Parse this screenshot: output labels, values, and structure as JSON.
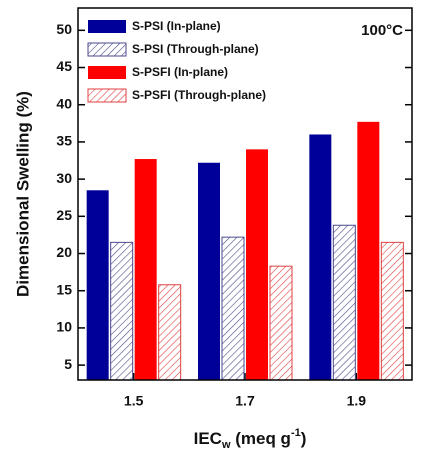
{
  "chart_data": {
    "type": "bar",
    "annotation": "100°C",
    "y_label": "Dimensional Swelling (%)",
    "x_label": [
      "IEC",
      "w",
      " (meq g",
      "-1",
      ")"
    ],
    "categories": [
      "1.5",
      "1.7",
      "1.9"
    ],
    "series": [
      {
        "name": "S-PSI (In-plane)",
        "color": "#000099",
        "hatch": false,
        "values": [
          28.5,
          32.2,
          36.0
        ]
      },
      {
        "name": "S-PSI (Through-plane)",
        "color": "#4a4a8c",
        "hatch": true,
        "values": [
          21.5,
          22.2,
          23.8
        ]
      },
      {
        "name": "S-PSFI (In-plane)",
        "color": "#ff0000",
        "hatch": false,
        "values": [
          32.7,
          34.0,
          37.7
        ]
      },
      {
        "name": "S-PSFI (Through-plane)",
        "color": "#e04040",
        "hatch": true,
        "values": [
          15.8,
          18.3,
          21.5
        ]
      }
    ],
    "ylim": [
      3,
      53
    ],
    "yticks": [
      5,
      10,
      15,
      20,
      25,
      30,
      35,
      40,
      45,
      50
    ],
    "legend": "upper-left"
  }
}
